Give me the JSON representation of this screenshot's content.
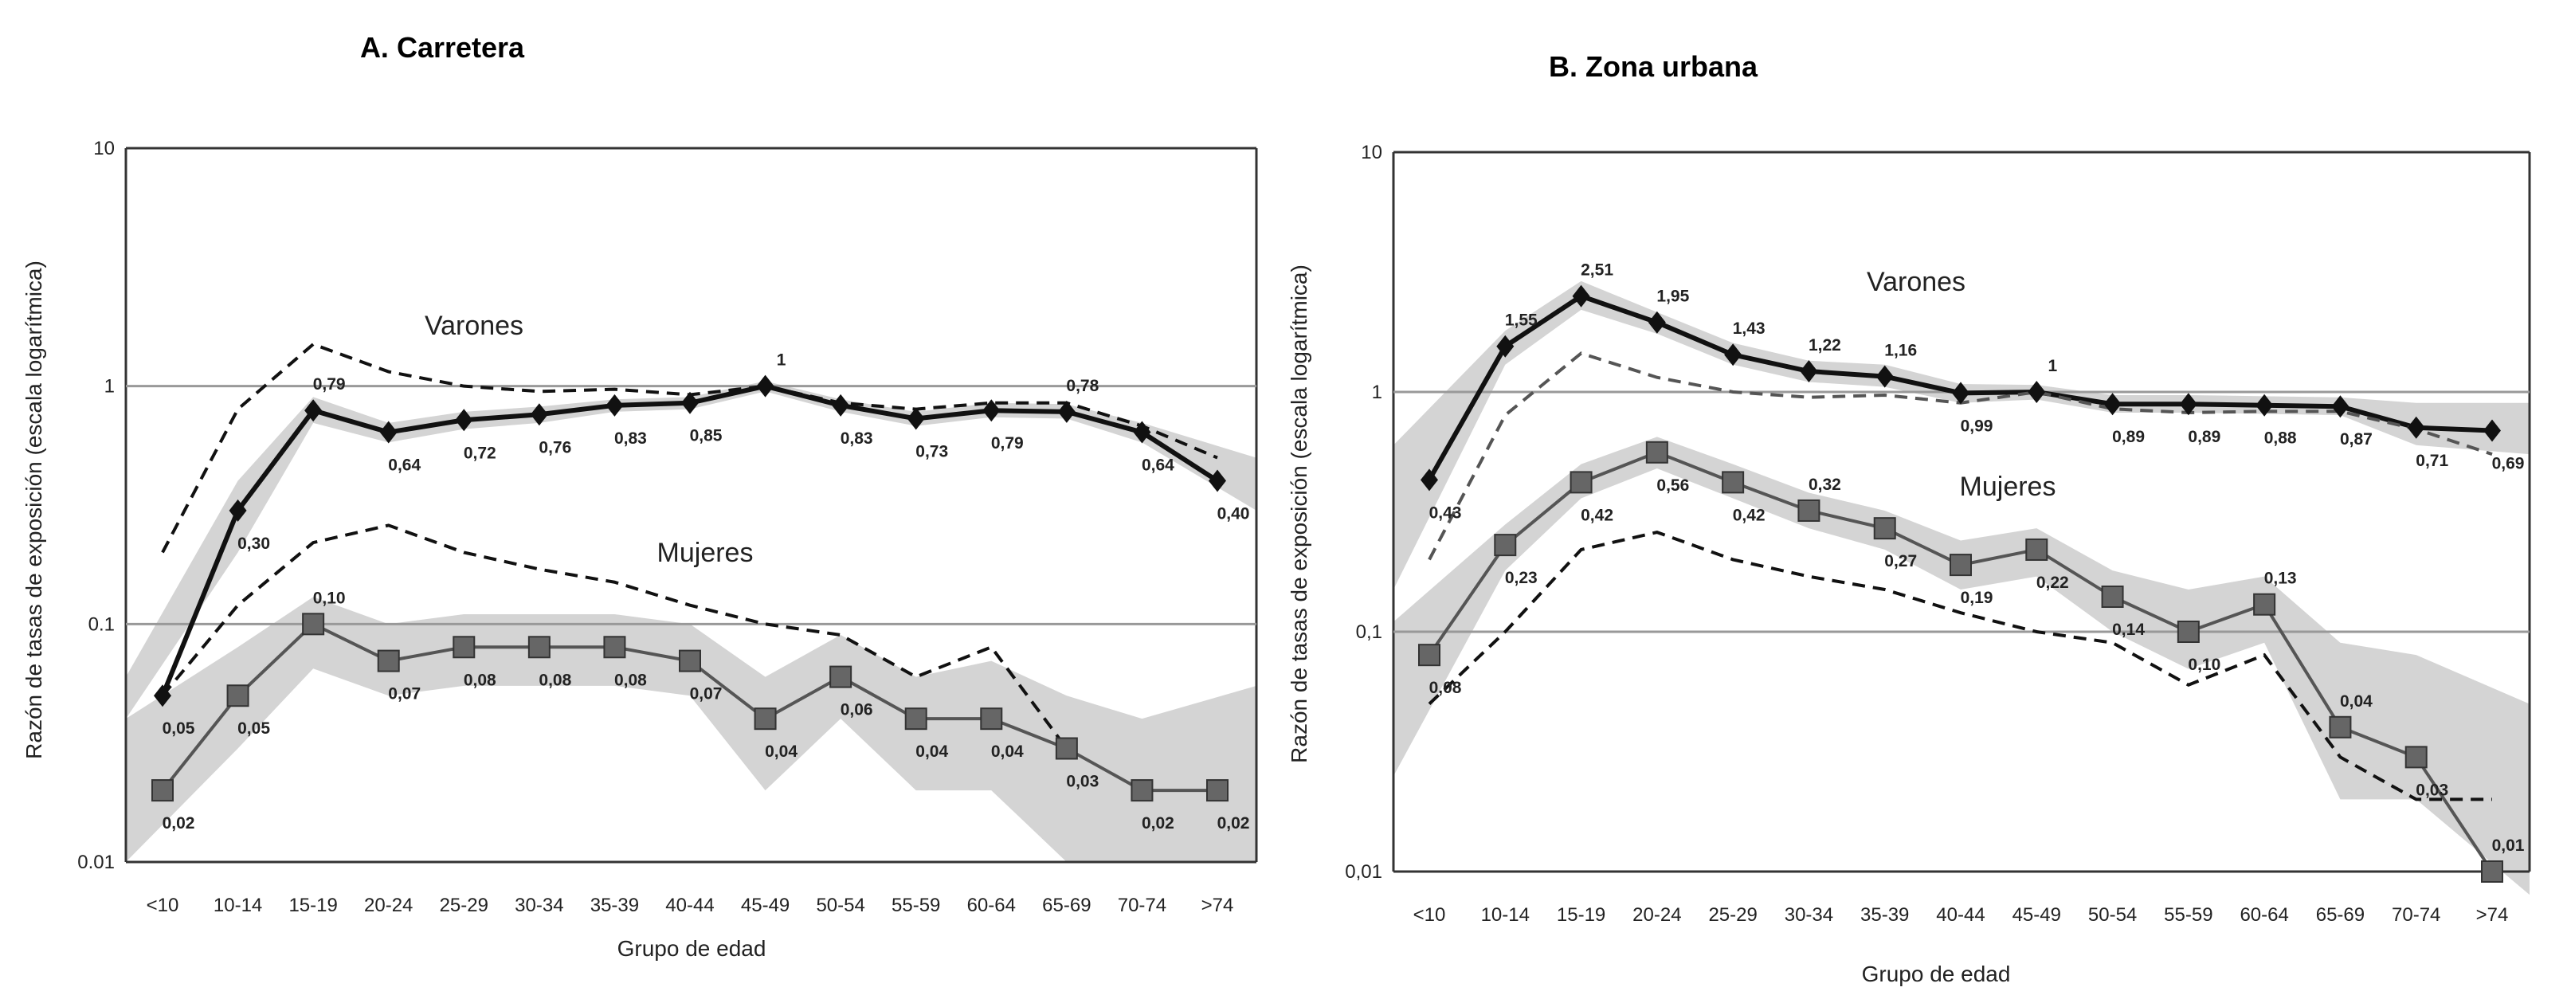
{
  "chart_data": [
    {
      "type": "line",
      "title": "A. Carretera",
      "xlabel": "Grupo de edad",
      "ylabel": "Razón de tasas de exposición (escala logarítmica)",
      "yscale": "log",
      "ylim": [
        0.01,
        10
      ],
      "yticks": [
        "10",
        "1",
        "0.1",
        "0.01"
      ],
      "grid": "horizontal at 1 and 0.1",
      "categories": [
        "<10",
        "10-14",
        "15-19",
        "20-24",
        "25-29",
        "30-34",
        "35-39",
        "40-44",
        "45-49",
        "50-54",
        "55-59",
        "60-64",
        "65-69",
        "70-74",
        ">74"
      ],
      "series": [
        {
          "name": "Varones",
          "style": "solid-diamond",
          "color": "#111111",
          "values": [
            0.05,
            0.3,
            0.79,
            0.64,
            0.72,
            0.76,
            0.83,
            0.85,
            1,
            0.83,
            0.73,
            0.79,
            0.78,
            0.64,
            0.4
          ],
          "labels": [
            "0,05",
            "0,30",
            "0,79",
            "0,64",
            "0,72",
            "0,76",
            "0,83",
            "0,85",
            "1",
            "0,83",
            "0,73",
            "0,79",
            "0,78",
            "0,64",
            "0,40"
          ],
          "ci_low": [
            0.04,
            0.2,
            0.7,
            0.58,
            0.66,
            0.7,
            0.78,
            0.8,
            0.95,
            0.78,
            0.68,
            0.74,
            0.73,
            0.58,
            0.3
          ],
          "ci_high": [
            0.06,
            0.4,
            0.9,
            0.7,
            0.78,
            0.82,
            0.88,
            0.9,
            1.05,
            0.88,
            0.78,
            0.85,
            0.84,
            0.7,
            0.5
          ]
        },
        {
          "name": "Mujeres",
          "style": "solid-square",
          "color": "#555555",
          "values": [
            0.02,
            0.05,
            0.1,
            0.07,
            0.08,
            0.08,
            0.08,
            0.07,
            0.04,
            0.06,
            0.04,
            0.04,
            0.03,
            0.02,
            0.02
          ],
          "labels": [
            "0,02",
            "0,05",
            "0,10",
            "0,07",
            "0,08",
            "0,08",
            "0,08",
            "0,07",
            "0,04",
            "0,06",
            "0,04",
            "0,04",
            "0,03",
            "0,02",
            "0,02"
          ],
          "ci_low": [
            0.01,
            0.03,
            0.065,
            0.05,
            0.055,
            0.055,
            0.055,
            0.05,
            0.02,
            0.04,
            0.02,
            0.02,
            0.01,
            0.01,
            0.01
          ],
          "ci_high": [
            0.04,
            0.08,
            0.13,
            0.1,
            0.11,
            0.11,
            0.11,
            0.1,
            0.06,
            0.09,
            0.06,
            0.07,
            0.05,
            0.04,
            0.055
          ]
        },
        {
          "style": "dashed",
          "color": "#111111",
          "values": [
            0.2,
            0.8,
            1.5,
            1.15,
            1.0,
            0.95,
            0.97,
            0.92,
            1,
            0.85,
            0.8,
            0.85,
            0.85,
            0.68,
            0.5
          ]
        },
        {
          "style": "dashed",
          "color": "#111111",
          "values": [
            0.05,
            0.12,
            0.22,
            0.26,
            0.2,
            0.17,
            0.15,
            0.12,
            0.1,
            0.09,
            0.06,
            0.08,
            0.03,
            null,
            null
          ]
        }
      ]
    },
    {
      "type": "line",
      "title": "B. Zona urbana",
      "xlabel": "Grupo de edad",
      "ylabel": "Razón de tasas de exposición (escala logarítmica)",
      "yscale": "log",
      "ylim": [
        0.01,
        10
      ],
      "yticks": [
        "10",
        "1",
        "0,1",
        "0,01"
      ],
      "grid": "horizontal at 1 and 0.1",
      "categories": [
        "<10",
        "10-14",
        "15-19",
        "20-24",
        "25-29",
        "30-34",
        "35-39",
        "40-44",
        "45-49",
        "50-54",
        "55-59",
        "60-64",
        "65-69",
        "70-74",
        ">74"
      ],
      "series": [
        {
          "name": "Varones",
          "style": "solid-diamond",
          "color": "#111111",
          "values": [
            0.43,
            1.55,
            2.51,
            1.95,
            1.43,
            1.22,
            1.16,
            0.99,
            1,
            0.89,
            0.89,
            0.88,
            0.87,
            0.71,
            0.69
          ],
          "labels": [
            "0,43",
            "1,55",
            "2,51",
            "1,95",
            "1,43",
            "1,22",
            "1,16",
            "0,99",
            "1",
            "0,89",
            "0,89",
            "0,88",
            "0,87",
            "0,71",
            "0,69"
          ],
          "ci_low": [
            0.15,
            1.3,
            2.2,
            1.75,
            1.3,
            1.1,
            1.05,
            0.9,
            0.93,
            0.82,
            0.82,
            0.81,
            0.8,
            0.6,
            0.55
          ],
          "ci_high": [
            0.6,
            1.8,
            2.9,
            2.15,
            1.6,
            1.35,
            1.3,
            1.08,
            1.07,
            0.97,
            0.97,
            0.96,
            0.95,
            0.9,
            0.9
          ]
        },
        {
          "name": "Mujeres",
          "style": "solid-square",
          "color": "#555555",
          "values": [
            0.08,
            0.23,
            0.42,
            0.56,
            0.42,
            0.32,
            0.27,
            0.19,
            0.22,
            0.14,
            0.1,
            0.13,
            0.04,
            0.03,
            0.01
          ],
          "labels": [
            "0,08",
            "0,23",
            "0,42",
            "0,56",
            "0,42",
            "0,32",
            "0,27",
            "0,19",
            "0,22",
            "0,14",
            "0,10",
            "0,13",
            "0,04",
            "0,03",
            "0,01"
          ],
          "ci_low": [
            0.025,
            0.18,
            0.36,
            0.48,
            0.36,
            0.27,
            0.22,
            0.15,
            0.17,
            0.1,
            0.07,
            0.09,
            0.02,
            0.02,
            0.008
          ],
          "ci_high": [
            0.11,
            0.28,
            0.5,
            0.65,
            0.5,
            0.38,
            0.32,
            0.24,
            0.27,
            0.18,
            0.15,
            0.17,
            0.09,
            0.08,
            0.05
          ]
        },
        {
          "style": "dashed",
          "color": "#555555",
          "values": [
            0.2,
            0.8,
            1.45,
            1.15,
            1.0,
            0.95,
            0.97,
            0.9,
            1,
            0.85,
            0.82,
            0.83,
            0.83,
            0.7,
            0.55
          ]
        },
        {
          "style": "dashed",
          "color": "#111111",
          "values": [
            0.05,
            0.1,
            0.22,
            0.26,
            0.2,
            0.17,
            0.15,
            0.12,
            0.1,
            0.09,
            0.06,
            0.08,
            0.03,
            0.02,
            0.02
          ]
        }
      ]
    }
  ]
}
